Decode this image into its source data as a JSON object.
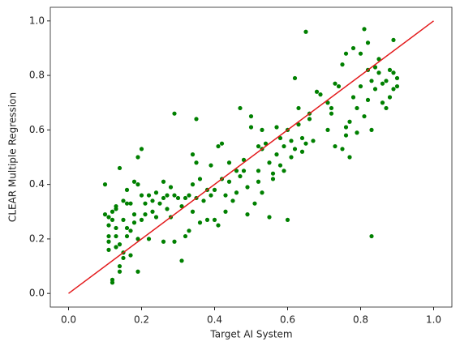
{
  "chart_data": {
    "type": "scatter",
    "xlabel": "Target AI System",
    "ylabel": "CLEAR Multiple Regression",
    "xlim": [
      -0.05,
      1.05
    ],
    "ylim": [
      -0.05,
      1.05
    ],
    "xticks": [
      {
        "value": 0,
        "label": "0.0"
      },
      0.2,
      0.4,
      0.6,
      0.8,
      {
        "value": 1,
        "label": "1.0"
      }
    ],
    "yticks": [
      {
        "value": 0,
        "label": "0.0"
      },
      0.2,
      0.4,
      0.6,
      0.8,
      {
        "value": 1,
        "label": "1.0"
      }
    ],
    "points": {
      "color": "#008000",
      "x": [
        0.1,
        0.1,
        0.11,
        0.11,
        0.11,
        0.11,
        0.11,
        0.12,
        0.12,
        0.12,
        0.12,
        0.13,
        0.13,
        0.13,
        0.13,
        0.13,
        0.14,
        0.14,
        0.14,
        0.14,
        0.15,
        0.15,
        0.15,
        0.15,
        0.16,
        0.16,
        0.16,
        0.16,
        0.17,
        0.17,
        0.17,
        0.18,
        0.18,
        0.18,
        0.19,
        0.19,
        0.19,
        0.19,
        0.2,
        0.2,
        0.2,
        0.21,
        0.21,
        0.22,
        0.22,
        0.23,
        0.23,
        0.24,
        0.24,
        0.25,
        0.26,
        0.26,
        0.26,
        0.27,
        0.27,
        0.28,
        0.28,
        0.29,
        0.29,
        0.29,
        0.3,
        0.31,
        0.31,
        0.32,
        0.32,
        0.33,
        0.33,
        0.34,
        0.34,
        0.34,
        0.35,
        0.35,
        0.35,
        0.36,
        0.36,
        0.37,
        0.38,
        0.38,
        0.39,
        0.39,
        0.4,
        0.4,
        0.41,
        0.41,
        0.42,
        0.42,
        0.43,
        0.43,
        0.44,
        0.45,
        0.46,
        0.47,
        0.47,
        0.48,
        0.48,
        0.49,
        0.49,
        0.5,
        0.5,
        0.51,
        0.52,
        0.52,
        0.52,
        0.53,
        0.53,
        0.54,
        0.55,
        0.55,
        0.56,
        0.57,
        0.57,
        0.58,
        0.59,
        0.59,
        0.6,
        0.6,
        0.61,
        0.61,
        0.62,
        0.62,
        0.63,
        0.63,
        0.64,
        0.64,
        0.65,
        0.65,
        0.66,
        0.67,
        0.68,
        0.69,
        0.71,
        0.72,
        0.72,
        0.73,
        0.73,
        0.74,
        0.75,
        0.75,
        0.76,
        0.76,
        0.77,
        0.77,
        0.78,
        0.78,
        0.79,
        0.79,
        0.8,
        0.8,
        0.81,
        0.81,
        0.82,
        0.82,
        0.82,
        0.83,
        0.83,
        0.83,
        0.84,
        0.84,
        0.85,
        0.85,
        0.86,
        0.86,
        0.87,
        0.87,
        0.88,
        0.88,
        0.89,
        0.89,
        0.89,
        0.9,
        0.9,
        0.76,
        0.71,
        0.44,
        0.46,
        0.53,
        0.56,
        0.58,
        0.66
      ],
      "y": [
        0.4,
        0.29,
        0.28,
        0.25,
        0.21,
        0.19,
        0.16,
        0.3,
        0.05,
        0.04,
        0.27,
        0.32,
        0.31,
        0.24,
        0.21,
        0.17,
        0.46,
        0.1,
        0.08,
        0.18,
        0.34,
        0.27,
        0.15,
        0.13,
        0.38,
        0.33,
        0.24,
        0.21,
        0.23,
        0.14,
        0.33,
        0.41,
        0.29,
        0.26,
        0.4,
        0.5,
        0.08,
        0.2,
        0.53,
        0.36,
        0.27,
        0.33,
        0.29,
        0.2,
        0.36,
        0.3,
        0.34,
        0.37,
        0.28,
        0.33,
        0.41,
        0.35,
        0.19,
        0.36,
        0.31,
        0.39,
        0.28,
        0.36,
        0.19,
        0.66,
        0.35,
        0.12,
        0.32,
        0.21,
        0.35,
        0.23,
        0.36,
        0.4,
        0.3,
        0.51,
        0.64,
        0.48,
        0.35,
        0.42,
        0.26,
        0.34,
        0.38,
        0.27,
        0.47,
        0.36,
        0.38,
        0.27,
        0.54,
        0.25,
        0.42,
        0.55,
        0.36,
        0.3,
        0.48,
        0.34,
        0.37,
        0.68,
        0.43,
        0.49,
        0.45,
        0.39,
        0.29,
        0.65,
        0.61,
        0.33,
        0.54,
        0.45,
        0.41,
        0.6,
        0.37,
        0.55,
        0.28,
        0.48,
        0.44,
        0.61,
        0.51,
        0.47,
        0.45,
        0.54,
        0.6,
        0.27,
        0.56,
        0.5,
        0.79,
        0.53,
        0.68,
        0.62,
        0.57,
        0.52,
        0.96,
        0.55,
        0.64,
        0.56,
        0.74,
        0.73,
        0.6,
        0.68,
        0.66,
        0.54,
        0.77,
        0.76,
        0.84,
        0.53,
        0.88,
        0.61,
        0.5,
        0.63,
        0.9,
        0.72,
        0.68,
        0.59,
        0.88,
        0.76,
        0.97,
        0.65,
        0.92,
        0.82,
        0.71,
        0.78,
        0.6,
        0.21,
        0.83,
        0.75,
        0.86,
        0.81,
        0.77,
        0.7,
        0.78,
        0.68,
        0.82,
        0.72,
        0.93,
        0.81,
        0.75,
        0.79,
        0.76,
        0.58,
        0.7,
        0.41,
        0.45,
        0.53,
        0.42,
        0.57,
        0.66
      ]
    },
    "line": {
      "color": "#e31a1c",
      "x": [
        0,
        1
      ],
      "y": [
        0,
        1
      ]
    }
  }
}
